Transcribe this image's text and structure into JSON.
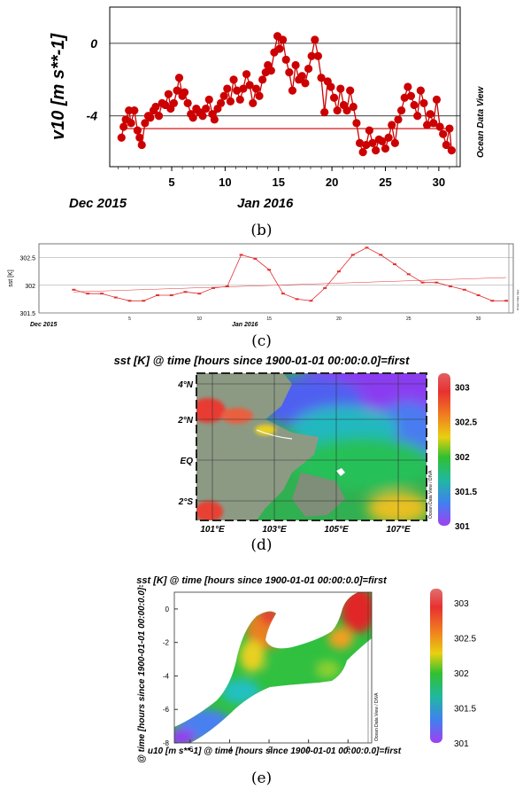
{
  "captions": {
    "b": "(b)",
    "c": "(c)",
    "d": "(d)",
    "e": "(e)"
  },
  "watermark": "Ocean Data View",
  "watermark_dna": "Ocean Data View / DIVA",
  "chart_b": {
    "type": "line",
    "ylabel": "v10 [m s**-1]",
    "ylim": [
      -6.8,
      2.0
    ],
    "y_ticks": [
      0,
      -4
    ],
    "y_tick_labels": [
      "0",
      "-4"
    ],
    "x_ticks": [
      5,
      10,
      15,
      20,
      25,
      30
    ],
    "x_tick_labels": [
      "5",
      "10",
      "15",
      "20",
      "25",
      "30"
    ],
    "month_labels": [
      "Dec 2015",
      "Jan 2016"
    ],
    "xlim": [
      -0.8,
      32.0
    ],
    "trend": [
      -4.7,
      -4.7
    ],
    "series_color": "#cc0000",
    "x": [
      0.3,
      0.5,
      0.7,
      1.0,
      1.2,
      1.5,
      1.8,
      2.0,
      2.2,
      2.5,
      2.8,
      3.0,
      3.3,
      3.5,
      3.8,
      4.1,
      4.4,
      4.7,
      4.9,
      5.2,
      5.5,
      5.7,
      6.0,
      6.2,
      6.5,
      6.8,
      7.0,
      7.3,
      7.6,
      7.9,
      8.2,
      8.5,
      8.8,
      9.0,
      9.3,
      9.6,
      9.9,
      10.2,
      10.5,
      10.8,
      11.1,
      11.4,
      11.7,
      12.0,
      12.3,
      12.6,
      12.9,
      13.2,
      13.5,
      13.8,
      14.0,
      14.3,
      14.6,
      14.9,
      15.1,
      15.4,
      15.7,
      16.0,
      16.3,
      16.6,
      16.9,
      17.2,
      17.5,
      17.8,
      18.1,
      18.4,
      18.7,
      19.0,
      19.3,
      19.6,
      19.9,
      20.2,
      20.5,
      20.8,
      21.1,
      21.4,
      21.7,
      22.0,
      22.3,
      22.6,
      22.9,
      23.2,
      23.5,
      23.8,
      24.1,
      24.4,
      24.7,
      25.0,
      25.3,
      25.6,
      25.9,
      26.2,
      26.5,
      26.8,
      27.1,
      27.4,
      27.7,
      28.0,
      28.3,
      28.6,
      28.9,
      29.2,
      29.5,
      29.8,
      30.1,
      30.4,
      30.7,
      31.0,
      31.2
    ],
    "y": [
      -5.2,
      -4.6,
      -4.2,
      -3.7,
      -4.4,
      -3.7,
      -4.8,
      -5.2,
      -5.6,
      -4.4,
      -4.0,
      -4.1,
      -3.7,
      -3.5,
      -4.0,
      -3.3,
      -3.4,
      -2.8,
      -3.6,
      -3.3,
      -2.6,
      -1.9,
      -2.9,
      -2.7,
      -3.3,
      -3.9,
      -4.1,
      -3.6,
      -3.8,
      -4.0,
      -3.6,
      -3.1,
      -3.9,
      -4.2,
      -3.6,
      -3.3,
      -2.9,
      -2.5,
      -3.2,
      -2.0,
      -2.6,
      -3.1,
      -2.5,
      -1.7,
      -2.3,
      -3.3,
      -2.5,
      -2.9,
      -2.0,
      -1.6,
      -1.2,
      -1.5,
      -0.5,
      0.4,
      -0.3,
      0.2,
      -0.9,
      -1.6,
      -2.6,
      -1.2,
      -2.0,
      -1.8,
      -2.2,
      -1.4,
      -0.7,
      0.2,
      -0.7,
      -1.9,
      -3.8,
      -2.1,
      -2.4,
      -3.0,
      -3.7,
      -2.5,
      -3.4,
      -3.7,
      -2.6,
      -3.5,
      -4.4,
      -5.5,
      -6.0,
      -5.6,
      -4.8,
      -5.5,
      -5.9,
      -5.3,
      -5.4,
      -5.8,
      -5.2,
      -4.5,
      -5.5,
      -4.2,
      -3.7,
      -3.0,
      -2.4,
      -2.9,
      -3.4,
      -4.0,
      -2.6,
      -3.3,
      -4.5,
      -3.9,
      -4.4,
      -3.1,
      -4.6,
      -5.0,
      -5.6,
      -4.7,
      -5.9
    ]
  },
  "chart_c": {
    "type": "line",
    "ylabel": "sst [K]",
    "ylim": [
      301.5,
      302.75
    ],
    "y_ticks": [
      301.5,
      302,
      302.5
    ],
    "y_tick_labels": [
      "301.5",
      "302",
      "302.5"
    ],
    "x_ticks": [
      5,
      10,
      15,
      20,
      25,
      30
    ],
    "x_tick_labels": [
      "5",
      "10",
      "15",
      "20",
      "25",
      "30"
    ],
    "month_labels": [
      "Dec 2015",
      "Jan 2016"
    ],
    "xlim": [
      -1.5,
      32.5
    ],
    "series_color": "#e03030",
    "trend": [
      301.88,
      302.14
    ],
    "x": [
      1,
      2,
      3,
      4,
      5,
      6,
      7,
      8,
      9,
      10,
      11,
      12,
      13,
      14,
      15,
      16,
      17,
      18,
      19,
      20,
      21,
      22,
      23,
      24,
      25,
      26,
      27,
      28,
      29,
      30,
      31,
      32
    ],
    "y": [
      301.92,
      301.85,
      301.85,
      301.78,
      301.72,
      301.72,
      301.82,
      301.82,
      301.88,
      301.85,
      301.95,
      301.98,
      302.55,
      302.48,
      302.28,
      301.85,
      301.75,
      301.72,
      301.95,
      302.25,
      302.55,
      302.68,
      302.55,
      302.38,
      302.2,
      302.05,
      302.05,
      301.98,
      301.92,
      301.82,
      301.72,
      301.72
    ]
  },
  "chart_d": {
    "type": "heatmap",
    "title": "sst [K] @ time [hours since 1900-01-01 00:00:0.0]=first",
    "lat_labels": [
      "4°N",
      "2°N",
      "EQ",
      "2°S"
    ],
    "lon_labels": [
      "101°E",
      "103°E",
      "105°E",
      "107°E"
    ],
    "colorbar_ticks": [
      "303",
      "302.5",
      "302",
      "301.5",
      "301"
    ],
    "colorbar_range": [
      301,
      303.2
    ]
  },
  "chart_e": {
    "type": "heatmap",
    "title": "sst [K] @ time [hours since 1900-01-01 00:00:0.0]=first",
    "xlabel": "u10 [m s**-1] @ time [hours since 1900-01-01 00:00:0.0]=first",
    "ylabel": "v10 [m s**-1] @ time [hours since 1900-01-01 00:00:0.0]=first",
    "x_tick_labels": [
      "-6",
      "-4",
      "-2",
      "0",
      "2"
    ],
    "y_tick_labels": [
      "0",
      "-2",
      "-4",
      "-6",
      "-8"
    ],
    "xlim": [
      -6.8,
      3.2
    ],
    "ylim": [
      -8,
      1.0
    ],
    "colorbar_ticks": [
      "303",
      "302.5",
      "302",
      "301.5",
      "301"
    ],
    "colorbar_range": [
      301,
      303.2
    ]
  }
}
